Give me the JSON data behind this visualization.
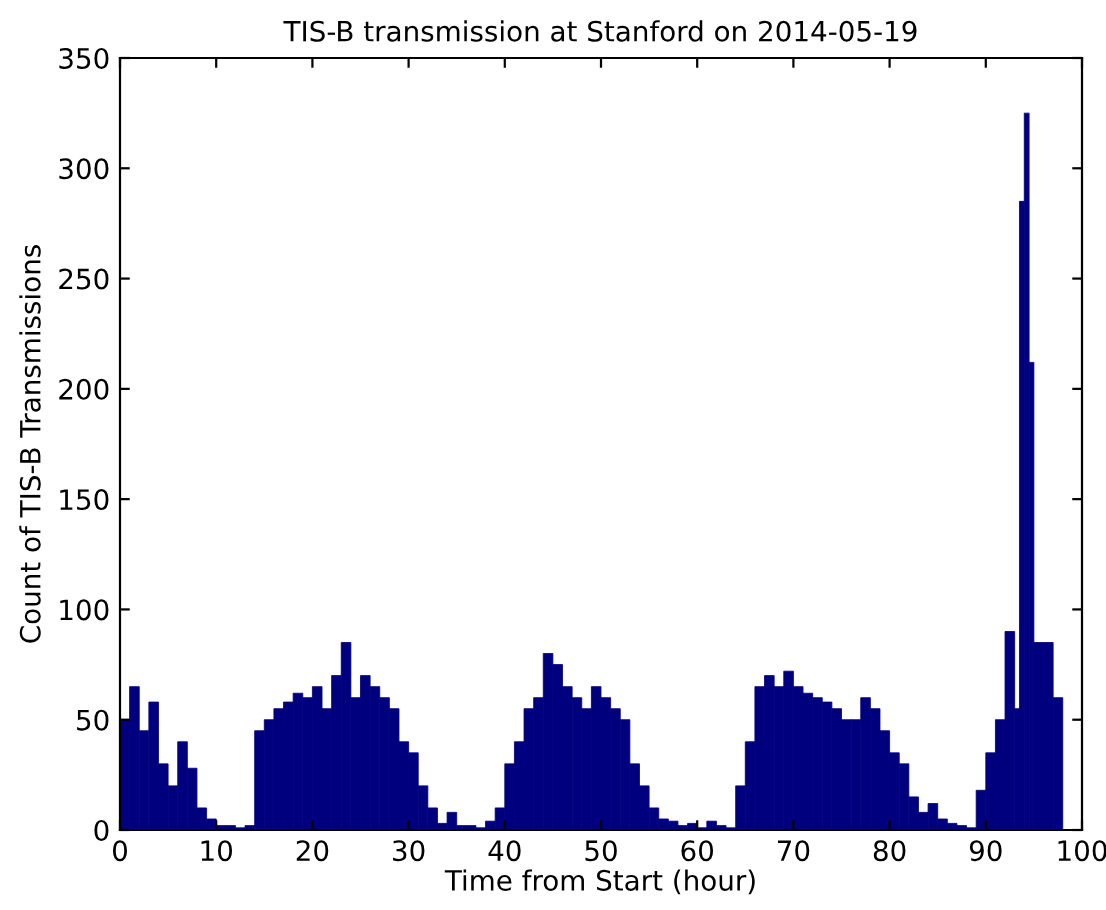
{
  "chart_data": {
    "type": "histogram",
    "title": "TIS-B transmission at Stanford on 2014-05-19",
    "xlabel": "Time from Start (hour)",
    "ylabel": "Count of TIS-B Transmissions",
    "color": "#00007f",
    "bins": [
      0,
      1,
      2,
      3,
      4,
      5,
      6,
      7,
      8,
      9,
      10,
      11,
      12,
      13,
      14,
      15,
      16,
      17,
      18,
      19,
      20,
      21,
      22,
      23,
      24,
      25,
      26,
      27,
      28,
      29,
      30,
      31,
      32,
      33,
      34,
      35,
      36,
      37,
      38,
      39,
      40,
      41,
      42,
      43,
      44,
      45,
      46,
      47,
      48,
      49,
      50,
      51,
      52,
      53,
      54,
      55,
      56,
      57,
      58,
      59,
      60,
      61,
      62,
      63,
      64,
      65,
      66,
      67,
      68,
      69,
      70,
      71,
      72,
      73,
      74,
      75,
      76,
      77,
      78,
      79,
      80,
      81,
      82,
      83,
      84,
      85,
      86,
      87,
      88,
      89,
      90,
      91,
      92,
      93,
      93.5,
      94,
      94.5,
      95,
      96,
      97,
      98
    ],
    "values": [
      50,
      65,
      45,
      58,
      30,
      20,
      40,
      28,
      10,
      5,
      2,
      2,
      1,
      2,
      45,
      50,
      55,
      58,
      62,
      60,
      65,
      55,
      70,
      85,
      60,
      70,
      65,
      60,
      55,
      40,
      35,
      20,
      10,
      3,
      8,
      2,
      2,
      1,
      4,
      10,
      30,
      40,
      55,
      60,
      80,
      75,
      65,
      60,
      55,
      65,
      60,
      55,
      50,
      30,
      20,
      10,
      5,
      4,
      2,
      3,
      1,
      4,
      2,
      1,
      20,
      40,
      65,
      70,
      65,
      72,
      65,
      62,
      60,
      58,
      55,
      50,
      50,
      60,
      55,
      45,
      35,
      30,
      15,
      8,
      12,
      5,
      3,
      2,
      1,
      18,
      35,
      50,
      90,
      55,
      285,
      325,
      212,
      85,
      85,
      60
    ],
    "xlim": [
      0,
      100
    ],
    "xticks": [
      0,
      10,
      20,
      30,
      40,
      50,
      60,
      70,
      80,
      90,
      100
    ],
    "ylim": [
      0,
      350
    ],
    "yticks": [
      0,
      50,
      100,
      150,
      200,
      250,
      300,
      350
    ],
    "grid": false
  }
}
